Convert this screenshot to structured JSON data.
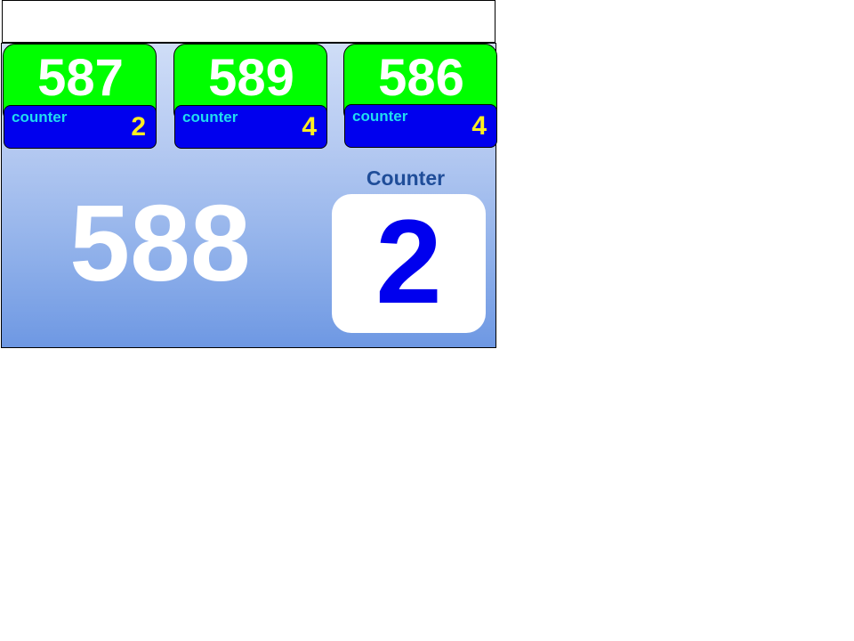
{
  "cards": [
    {
      "number": "587",
      "label": "counter",
      "count": "2"
    },
    {
      "number": "589",
      "label": "counter",
      "count": "4"
    },
    {
      "number": "586",
      "label": "counter",
      "count": "4"
    }
  ],
  "current": {
    "number": "588"
  },
  "counter_panel": {
    "title": "Counter",
    "value": "2"
  },
  "colors": {
    "card_top": "#00ff00",
    "card_bottom": "#0000ee",
    "label": "#1fdcf0",
    "count": "#ffee22",
    "counter_value": "#0000ee",
    "counter_title": "#1f4d99"
  }
}
